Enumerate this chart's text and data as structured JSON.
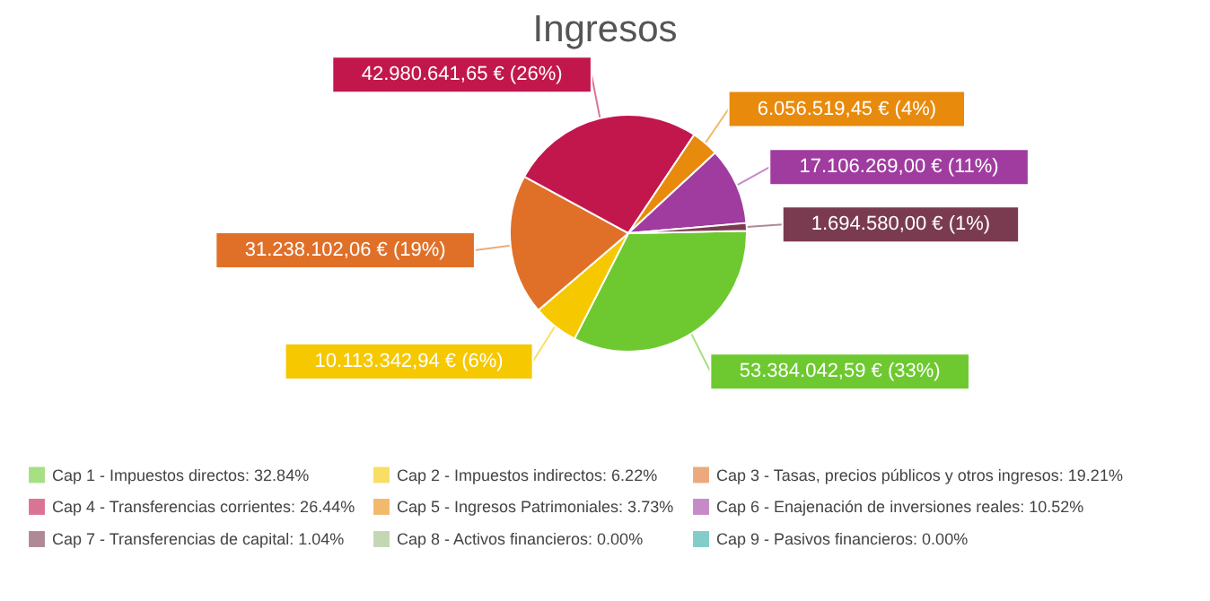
{
  "chart_data": {
    "type": "pie",
    "title": "Ingresos",
    "categories": [
      "Cap 1 - Impuestos directos: 32.84%",
      "Cap 2 - Impuestos indirectos: 6.22%",
      "Cap 3 - Tasas, precios públicos y otros ingresos: 19.21%",
      "Cap 4 - Transferencias corrientes: 26.44%",
      "Cap 5 - Ingresos Patrimoniales: 3.73%",
      "Cap 6 - Enajenación de inversiones reales: 10.52%",
      "Cap 7 - Transferencias de capital: 1.04%",
      "Cap 8 - Activos financieros: 0.00%",
      "Cap 9 - Pasivos financieros: 0.00%"
    ],
    "values": [
      53384042.59,
      10113342.94,
      31238102.06,
      42980641.65,
      6056519.45,
      17106269.0,
      1694580.0,
      0,
      0
    ],
    "value_labels": [
      "53.384.042,59 € (33%)",
      "10.113.342,94 € (6%)",
      "31.238.102,06 € (19%)",
      "42.980.641,65 € (26%)",
      "6.056.519,45 € (4%)",
      "17.106.269,00 € (11%)",
      "1.694.580,00 € (1%)",
      null,
      null
    ],
    "colors": [
      "#6dc92f",
      "#f5c800",
      "#e07028",
      "#c2174c",
      "#e88a0c",
      "#a03ca0",
      "#7a3b50",
      "#9cbd84",
      "#2eaaa6"
    ],
    "legend": "bottom"
  }
}
